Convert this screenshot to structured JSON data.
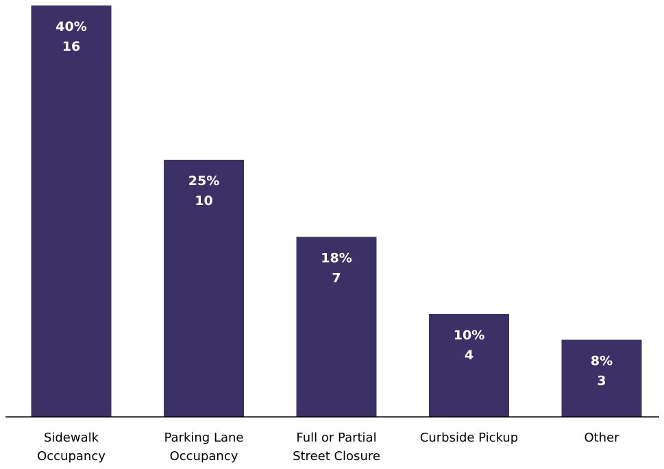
{
  "chart_data": {
    "type": "bar",
    "title": "",
    "xlabel": "",
    "ylabel": "",
    "categories": [
      [
        "Sidewalk",
        "Occupancy"
      ],
      [
        "Parking Lane",
        "Occupancy"
      ],
      [
        "Full or Partial",
        "Street Closure"
      ],
      [
        "Curbside Pickup"
      ],
      [
        "Other"
      ]
    ],
    "values": [
      16,
      10,
      7,
      4,
      3
    ],
    "percent_labels": [
      "40%",
      "25%",
      "18%",
      "10%",
      "8%"
    ],
    "count_labels": [
      "16",
      "10",
      "7",
      "4",
      "3"
    ],
    "ylim": [
      0,
      16
    ],
    "grid": false,
    "legend": "none",
    "bar_color": "#3b3167",
    "label_color": "#ffffff",
    "axis_color": "#000000"
  }
}
